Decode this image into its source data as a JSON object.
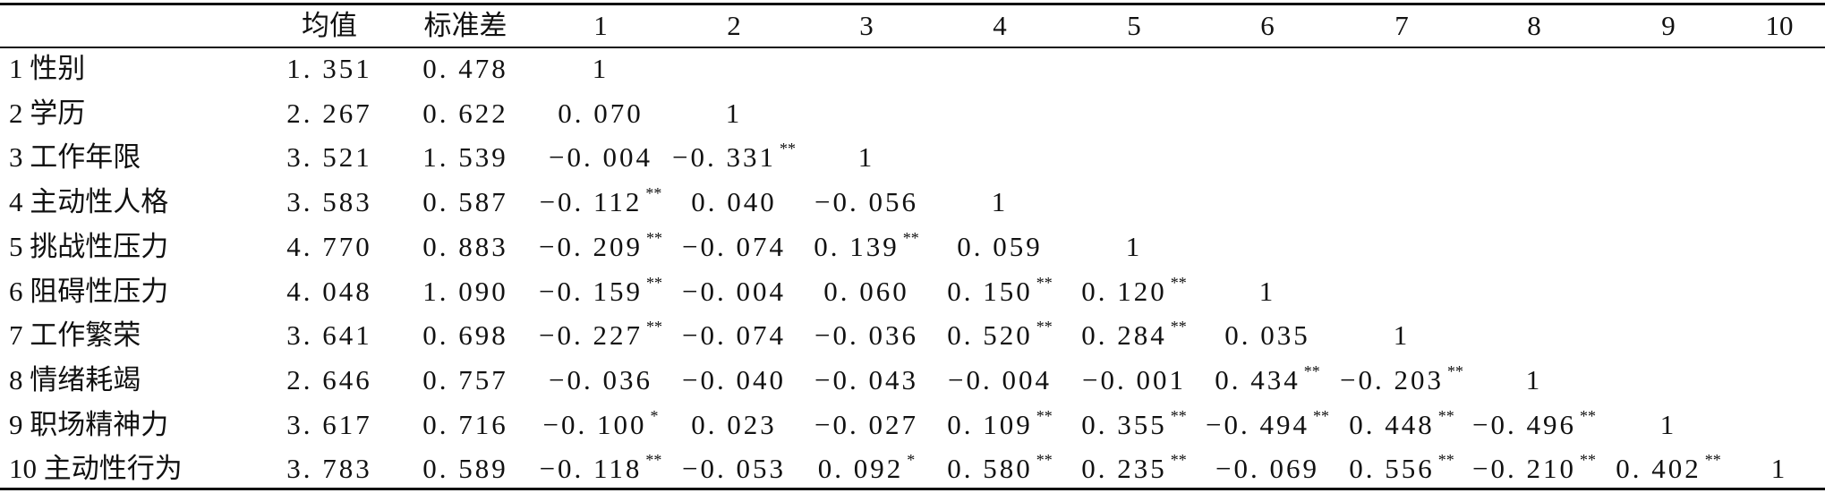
{
  "table": {
    "header": [
      "",
      "均值",
      "标准差",
      "1",
      "2",
      "3",
      "4",
      "5",
      "6",
      "7",
      "8",
      "9",
      "10"
    ],
    "rows": [
      {
        "label": "1 性别",
        "mean": "1. 351",
        "sd": "0. 478",
        "cells": [
          {
            "v": "1",
            "s": ""
          }
        ]
      },
      {
        "label": "2 学历",
        "mean": "2. 267",
        "sd": "0. 622",
        "cells": [
          {
            "v": "0. 070",
            "s": ""
          },
          {
            "v": "1",
            "s": ""
          }
        ]
      },
      {
        "label": "3 工作年限",
        "mean": "3. 521",
        "sd": "1. 539",
        "cells": [
          {
            "v": "−0. 004",
            "s": ""
          },
          {
            "v": "−0. 331",
            "s": "**"
          },
          {
            "v": "1",
            "s": ""
          }
        ]
      },
      {
        "label": "4 主动性人格",
        "mean": "3. 583",
        "sd": "0. 587",
        "cells": [
          {
            "v": "−0. 112",
            "s": "**"
          },
          {
            "v": "0. 040",
            "s": ""
          },
          {
            "v": "−0. 056",
            "s": ""
          },
          {
            "v": "1",
            "s": ""
          }
        ]
      },
      {
        "label": "5 挑战性压力",
        "mean": "4. 770",
        "sd": "0. 883",
        "cells": [
          {
            "v": "−0. 209",
            "s": "**"
          },
          {
            "v": "−0. 074",
            "s": ""
          },
          {
            "v": "0. 139",
            "s": "**"
          },
          {
            "v": "0. 059",
            "s": ""
          },
          {
            "v": "1",
            "s": ""
          }
        ]
      },
      {
        "label": "6 阻碍性压力",
        "mean": "4. 048",
        "sd": "1. 090",
        "cells": [
          {
            "v": "−0. 159",
            "s": "**"
          },
          {
            "v": "−0. 004",
            "s": ""
          },
          {
            "v": "0. 060",
            "s": ""
          },
          {
            "v": "0. 150",
            "s": "**"
          },
          {
            "v": "0. 120",
            "s": "**"
          },
          {
            "v": "1",
            "s": ""
          }
        ]
      },
      {
        "label": "7 工作繁荣",
        "mean": "3. 641",
        "sd": "0. 698",
        "cells": [
          {
            "v": "−0. 227",
            "s": "**"
          },
          {
            "v": "−0. 074",
            "s": ""
          },
          {
            "v": "−0. 036",
            "s": ""
          },
          {
            "v": "0. 520",
            "s": "**"
          },
          {
            "v": "0. 284",
            "s": "**"
          },
          {
            "v": "0. 035",
            "s": ""
          },
          {
            "v": "1",
            "s": ""
          }
        ]
      },
      {
        "label": "8 情绪耗竭",
        "mean": "2. 646",
        "sd": "0. 757",
        "cells": [
          {
            "v": "−0. 036",
            "s": ""
          },
          {
            "v": "−0. 040",
            "s": ""
          },
          {
            "v": "−0. 043",
            "s": ""
          },
          {
            "v": "−0. 004",
            "s": ""
          },
          {
            "v": "−0. 001",
            "s": ""
          },
          {
            "v": "0. 434",
            "s": "**"
          },
          {
            "v": "−0. 203",
            "s": "**"
          },
          {
            "v": "1",
            "s": ""
          }
        ]
      },
      {
        "label": "9 职场精神力",
        "mean": "3. 617",
        "sd": "0. 716",
        "cells": [
          {
            "v": "−0. 100",
            "s": "*"
          },
          {
            "v": "0. 023",
            "s": ""
          },
          {
            "v": "−0. 027",
            "s": ""
          },
          {
            "v": "0. 109",
            "s": "**"
          },
          {
            "v": "0. 355",
            "s": "**"
          },
          {
            "v": "−0. 494",
            "s": "**"
          },
          {
            "v": "0. 448",
            "s": "**"
          },
          {
            "v": "−0. 496",
            "s": "**"
          },
          {
            "v": "1",
            "s": ""
          }
        ]
      },
      {
        "label": "10 主动性行为",
        "mean": "3. 783",
        "sd": "0. 589",
        "cells": [
          {
            "v": "−0. 118",
            "s": "**"
          },
          {
            "v": "−0. 053",
            "s": ""
          },
          {
            "v": "0. 092",
            "s": "*"
          },
          {
            "v": "0. 580",
            "s": "**"
          },
          {
            "v": "0. 235",
            "s": "**"
          },
          {
            "v": "−0. 069",
            "s": ""
          },
          {
            "v": "0. 556",
            "s": "**"
          },
          {
            "v": "−0. 210",
            "s": "**"
          },
          {
            "v": "0. 402",
            "s": "**"
          },
          {
            "v": "1",
            "s": ""
          }
        ]
      }
    ]
  }
}
